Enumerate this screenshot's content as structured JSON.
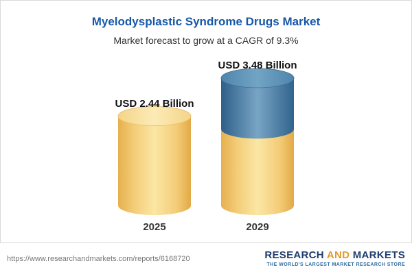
{
  "header": {
    "title": "Myelodysplastic Syndrome Drugs Market",
    "subtitle": "Market forecast to grow at a CAGR of 9.3%"
  },
  "chart_data": {
    "type": "bar",
    "categories": [
      "2025",
      "2029"
    ],
    "values": [
      2.44,
      3.48
    ],
    "value_labels": [
      "USD 2.44 Billion",
      "USD 3.48 Billion"
    ],
    "unit": "USD Billion",
    "title": "Myelodysplastic Syndrome Drugs Market",
    "subtitle": "Market forecast to grow at a CAGR of 9.3%",
    "cagr": "9.3%",
    "ylim": [
      0,
      4
    ],
    "grid": false,
    "legend": false,
    "bar_style": "cylinder",
    "colors": {
      "base_bar": "#f5cf74",
      "highlight_segment": "#4d7fa6"
    },
    "highlight_top_fraction": 0.4
  },
  "footer": {
    "url": "https://www.researchandmarkets.com/reports/6168720",
    "brand_words": [
      "RESEARCH",
      "AND",
      "MARKETS"
    ],
    "brand_tagline": "THE WORLD'S LARGEST MARKET RESEARCH STORE"
  }
}
